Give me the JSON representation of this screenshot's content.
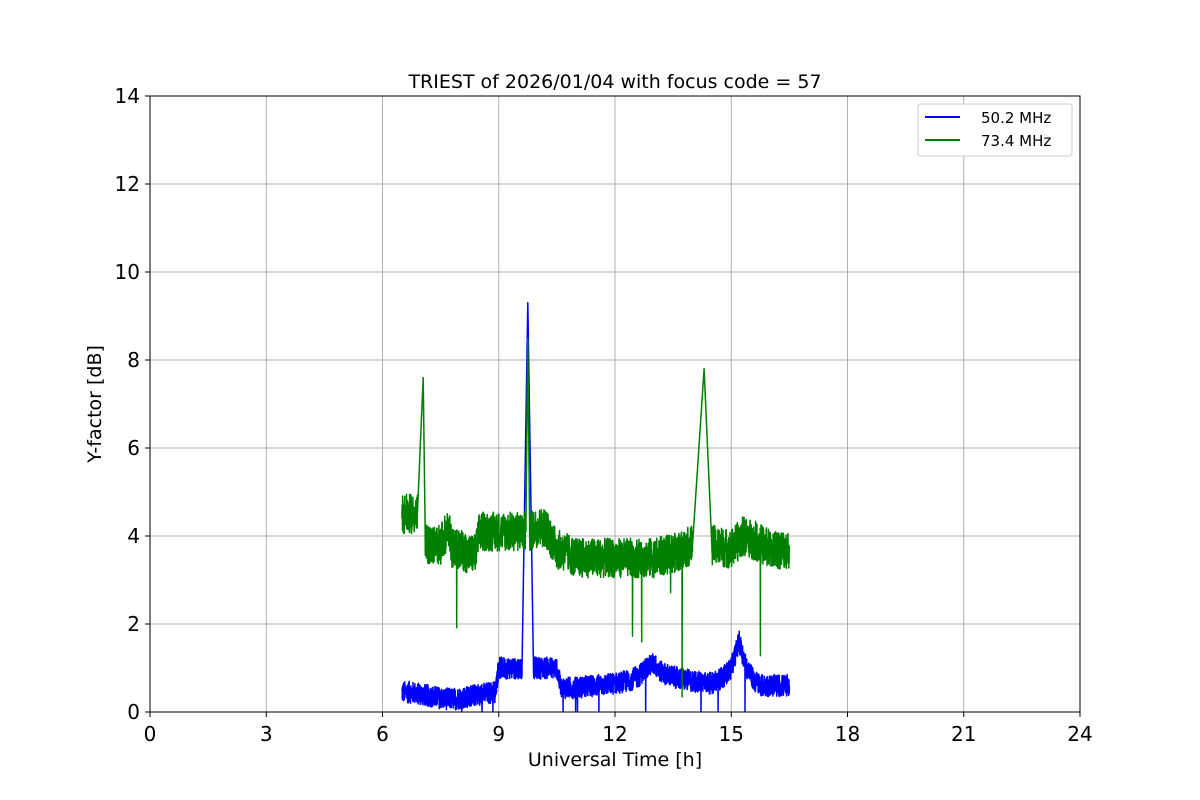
{
  "chart_data": {
    "type": "line",
    "title": "TRIEST of 2026/01/04 with focus code = 57",
    "xlabel": "Universal Time [h]",
    "ylabel": "Y-factor [dB]",
    "xlim": [
      0,
      24
    ],
    "ylim": [
      0,
      14
    ],
    "xticks": [
      0,
      3,
      6,
      9,
      12,
      15,
      18,
      21,
      24
    ],
    "yticks": [
      0,
      2,
      4,
      6,
      8,
      10,
      12,
      14
    ],
    "grid": true,
    "legend_position": "top-right",
    "series": [
      {
        "name": "50.2 MHz",
        "color": "#0000ff",
        "noise": 0.25,
        "x": [
          6.5,
          6.7,
          7.0,
          7.3,
          7.6,
          7.9,
          8.2,
          8.5,
          8.9,
          9.0,
          9.3,
          9.6,
          9.75,
          9.9,
          10.2,
          10.5,
          10.6,
          11.0,
          11.5,
          12.0,
          12.3,
          12.6,
          12.8,
          13.0,
          13.2,
          13.5,
          14.0,
          14.5,
          14.8,
          15.0,
          15.2,
          15.4,
          15.6,
          15.8,
          16.0,
          16.5
        ],
        "y": [
          0.45,
          0.45,
          0.4,
          0.35,
          0.3,
          0.3,
          0.35,
          0.4,
          0.45,
          1.0,
          1.0,
          1.0,
          9.3,
          1.0,
          1.0,
          1.0,
          0.55,
          0.55,
          0.6,
          0.65,
          0.7,
          0.8,
          1.0,
          1.1,
          0.9,
          0.8,
          0.7,
          0.65,
          0.8,
          1.0,
          1.6,
          1.0,
          0.7,
          0.6,
          0.6,
          0.6
        ]
      },
      {
        "name": "73.4 MHz",
        "color": "#008000",
        "noise": 0.45,
        "x": [
          6.5,
          6.7,
          6.9,
          7.05,
          7.1,
          7.3,
          7.5,
          7.7,
          7.8,
          8.0,
          8.2,
          8.4,
          8.5,
          8.8,
          9.0,
          9.2,
          9.5,
          9.7,
          9.75,
          9.8,
          10.0,
          10.2,
          10.5,
          10.8,
          11.0,
          11.5,
          12.0,
          12.5,
          13.0,
          13.5,
          14.0,
          14.3,
          14.5,
          15.0,
          15.3,
          15.6,
          16.0,
          16.5
        ],
        "y": [
          4.5,
          4.5,
          4.5,
          7.6,
          3.8,
          3.8,
          3.8,
          4.2,
          3.7,
          3.7,
          3.6,
          3.6,
          4.1,
          4.1,
          4.1,
          4.1,
          4.1,
          4.1,
          8.5,
          4.1,
          4.2,
          4.2,
          3.7,
          3.6,
          3.5,
          3.5,
          3.5,
          3.5,
          3.5,
          3.6,
          3.8,
          7.8,
          3.8,
          3.7,
          4.0,
          3.9,
          3.7,
          3.7
        ]
      }
    ]
  }
}
